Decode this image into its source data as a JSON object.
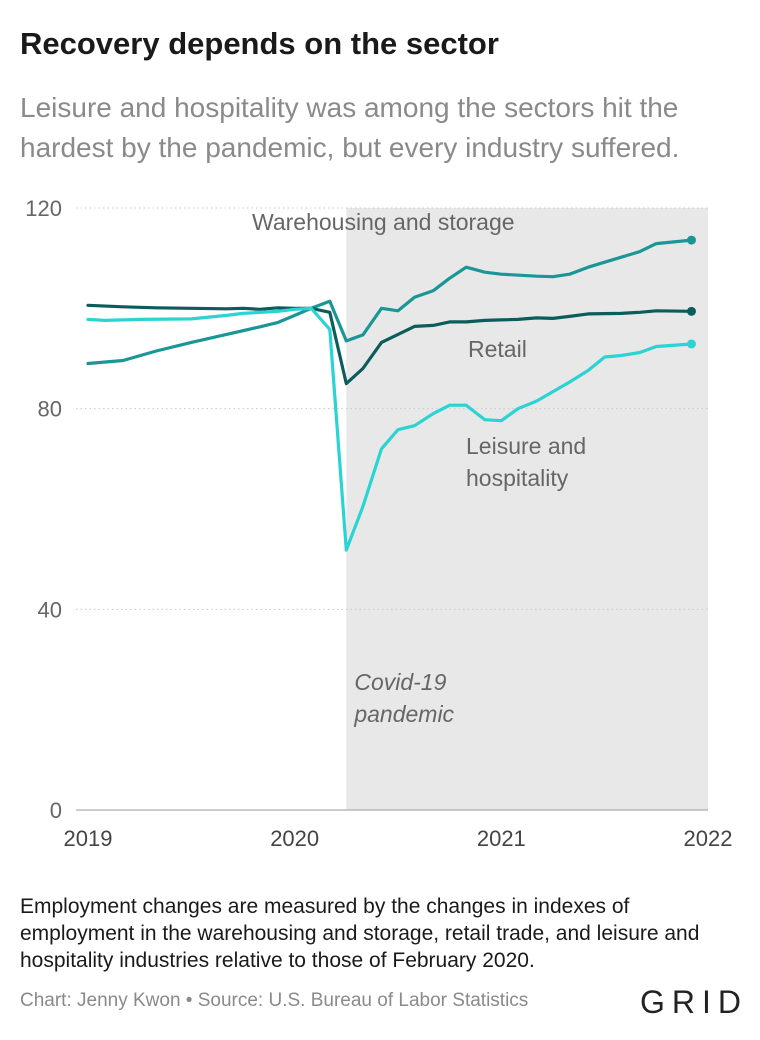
{
  "title": "Recovery depends on the sector",
  "subtitle": "Leisure and hospitality was among the sectors hit the hardest by the pandemic, but every industry suffered.",
  "note": "Employment changes are measured by the changes in indexes of employment in the warehousing and storage, retail trade, and leisure and hospitality industries relative to those of February 2020.",
  "source": "Chart: Jenny Kwon • Source: U.S. Bureau of Labor Statistics",
  "logo": "GRID",
  "colors": {
    "warehousing": "#1b9696",
    "retail": "#0d5c5c",
    "leisure": "#2bd3d3",
    "shade": "#e8e8e8",
    "label": "#666666"
  },
  "chart_data": {
    "type": "line",
    "title": "Recovery depends on the sector",
    "xlabel": "",
    "ylabel": "",
    "xlim": [
      2019,
      2022
    ],
    "ylim": [
      0,
      120
    ],
    "yticks": [
      0,
      40,
      80,
      120
    ],
    "xticks": [
      "2019",
      "2020",
      "2021",
      "2022"
    ],
    "grid": true,
    "shaded_region": {
      "x": [
        2020.25,
        2022
      ],
      "label_line1": "Covid-19",
      "label_line2": "pandemic"
    },
    "series": [
      {
        "name": "Warehousing and storage",
        "color_key": "warehousing",
        "label_lines": [
          "Warehousing and storage"
        ],
        "points": [
          [
            2019.0,
            89.0
          ],
          [
            2019.17,
            89.6
          ],
          [
            2019.33,
            91.5
          ],
          [
            2019.5,
            93.2
          ],
          [
            2019.67,
            94.8
          ],
          [
            2019.83,
            96.3
          ],
          [
            2019.92,
            97.2
          ],
          [
            2020.0,
            98.6
          ],
          [
            2020.08,
            100.0
          ],
          [
            2020.17,
            101.4
          ],
          [
            2020.25,
            93.5
          ],
          [
            2020.33,
            94.7
          ],
          [
            2020.42,
            100.0
          ],
          [
            2020.5,
            99.5
          ],
          [
            2020.58,
            102.2
          ],
          [
            2020.67,
            103.5
          ],
          [
            2020.75,
            106.0
          ],
          [
            2020.83,
            108.2
          ],
          [
            2020.92,
            107.2
          ],
          [
            2021.0,
            106.8
          ],
          [
            2021.17,
            106.4
          ],
          [
            2021.25,
            106.3
          ],
          [
            2021.33,
            106.8
          ],
          [
            2021.42,
            108.2
          ],
          [
            2021.58,
            110.2
          ],
          [
            2021.67,
            111.3
          ],
          [
            2021.75,
            112.9
          ],
          [
            2021.92,
            113.6
          ]
        ]
      },
      {
        "name": "Retail",
        "color_key": "retail",
        "label_lines": [
          "Retail"
        ],
        "points": [
          [
            2019.0,
            100.6
          ],
          [
            2019.17,
            100.3
          ],
          [
            2019.33,
            100.1
          ],
          [
            2019.5,
            100.0
          ],
          [
            2019.67,
            99.9
          ],
          [
            2019.75,
            100.0
          ],
          [
            2019.83,
            99.8
          ],
          [
            2019.92,
            100.1
          ],
          [
            2020.0,
            100.0
          ],
          [
            2020.08,
            100.0
          ],
          [
            2020.17,
            99.2
          ],
          [
            2020.25,
            85.0
          ],
          [
            2020.33,
            88.0
          ],
          [
            2020.42,
            93.2
          ],
          [
            2020.5,
            94.8
          ],
          [
            2020.58,
            96.4
          ],
          [
            2020.67,
            96.6
          ],
          [
            2020.75,
            97.3
          ],
          [
            2020.83,
            97.3
          ],
          [
            2020.92,
            97.6
          ],
          [
            2021.0,
            97.7
          ],
          [
            2021.08,
            97.8
          ],
          [
            2021.17,
            98.1
          ],
          [
            2021.25,
            98.0
          ],
          [
            2021.33,
            98.4
          ],
          [
            2021.42,
            98.9
          ],
          [
            2021.58,
            99.0
          ],
          [
            2021.67,
            99.2
          ],
          [
            2021.75,
            99.5
          ],
          [
            2021.92,
            99.4
          ]
        ]
      },
      {
        "name": "Leisure and hospitality",
        "color_key": "leisure",
        "label_lines": [
          "Leisure and",
          "hospitality"
        ],
        "points": [
          [
            2019.0,
            97.8
          ],
          [
            2019.08,
            97.6
          ],
          [
            2019.25,
            97.8
          ],
          [
            2019.5,
            97.9
          ],
          [
            2019.67,
            98.6
          ],
          [
            2019.75,
            99.0
          ],
          [
            2019.92,
            99.4
          ],
          [
            2020.0,
            99.8
          ],
          [
            2020.08,
            100.0
          ],
          [
            2020.17,
            95.8
          ],
          [
            2020.25,
            51.8
          ],
          [
            2020.33,
            60.5
          ],
          [
            2020.42,
            72.0
          ],
          [
            2020.5,
            75.8
          ],
          [
            2020.58,
            76.6
          ],
          [
            2020.67,
            79.0
          ],
          [
            2020.75,
            80.7
          ],
          [
            2020.83,
            80.7
          ],
          [
            2020.92,
            77.8
          ],
          [
            2021.0,
            77.6
          ],
          [
            2021.08,
            80.0
          ],
          [
            2021.17,
            81.5
          ],
          [
            2021.25,
            83.4
          ],
          [
            2021.33,
            85.3
          ],
          [
            2021.42,
            87.6
          ],
          [
            2021.5,
            90.3
          ],
          [
            2021.58,
            90.6
          ],
          [
            2021.67,
            91.2
          ],
          [
            2021.75,
            92.4
          ],
          [
            2021.92,
            92.9
          ]
        ]
      }
    ]
  }
}
